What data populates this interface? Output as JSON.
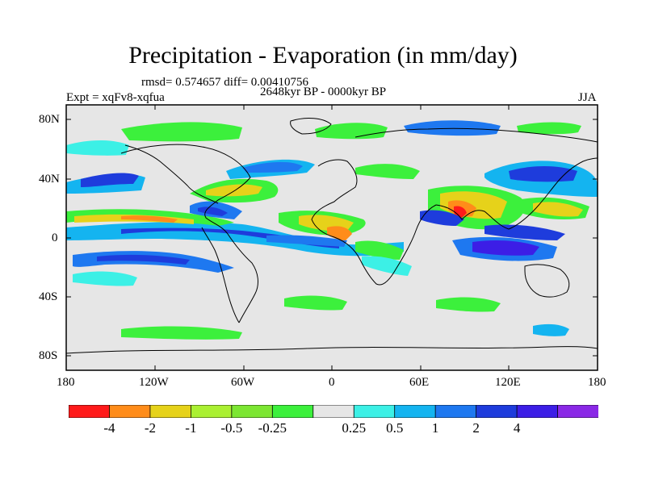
{
  "title": "Precipitation - Evaporation (in mm/day)",
  "stats_line": "rmsd= 0.574657 diff= 0.00410756",
  "experiment_label": "Expt = xqFv8-xqfua",
  "period_label": "2648kyr BP - 0000kyr BP",
  "season_label": "JJA",
  "colors": {
    "background_land_ocean": "#e6e6e6",
    "coast": "#000000"
  },
  "axes": {
    "lat_ticks": [
      "80N",
      "40N",
      "0",
      "40S",
      "80S"
    ],
    "lon_ticks": [
      "180",
      "120W",
      "60W",
      "0",
      "60E",
      "120E",
      "180"
    ]
  },
  "colorbar": {
    "colors": [
      "#ff1a1a",
      "#ff8c1a",
      "#e6d21a",
      "#aaf032",
      "#7ce632",
      "#3cf03c",
      "#e6e6e6",
      "#3cf0e6",
      "#14b4f0",
      "#1e78f0",
      "#1e3cdc",
      "#3c1ee6",
      "#8a28e6"
    ],
    "labels": [
      "-4",
      "-2",
      "-1",
      "-0.5",
      "-0.25",
      "0.25",
      "0.5",
      "1",
      "2",
      "4"
    ]
  },
  "legend_classes": {
    "red": "#ff1a1a",
    "orange": "#ff8c1a",
    "yellow": "#e6d21a",
    "lime": "#aaf032",
    "green": "#3cf03c",
    "cyan": "#3cf0e6",
    "sky": "#14b4f0",
    "blue": "#1e78f0",
    "navy": "#1e3cdc",
    "purple": "#3c1ee6"
  }
}
